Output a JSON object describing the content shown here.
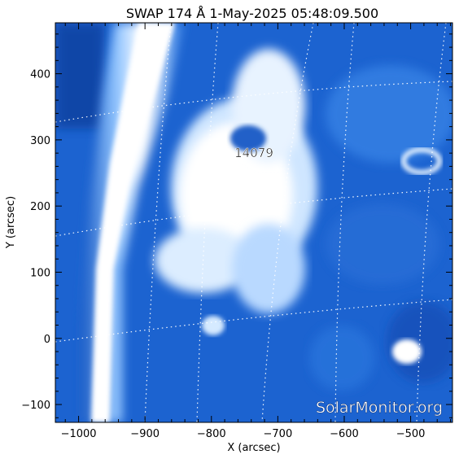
{
  "title": "SWAP 174 Å  1-May-2025 05:48:09.500",
  "x_axis": {
    "label": "X (arcsec)",
    "range": [
      -1035,
      -437
    ],
    "ticks": [
      -1000,
      -900,
      -800,
      -700,
      -600,
      -500
    ],
    "tick_labels": [
      "−1000",
      "−900",
      "−800",
      "−700",
      "−600",
      "−500"
    ]
  },
  "y_axis": {
    "label": "Y (arcsec)",
    "range": [
      -127,
      477
    ],
    "ticks": [
      -100,
      0,
      100,
      200,
      300,
      400
    ],
    "tick_labels": [
      "−100",
      "0",
      "100",
      "200",
      "300",
      "400"
    ]
  },
  "annotation": {
    "label": "14079"
  },
  "watermark": "SolarMonitor.org",
  "colors": {
    "deep_blue": "#0a3f9e",
    "mid_blue": "#2f7ee6",
    "light_blue": "#8fc4ff",
    "white": "#ffffff"
  }
}
